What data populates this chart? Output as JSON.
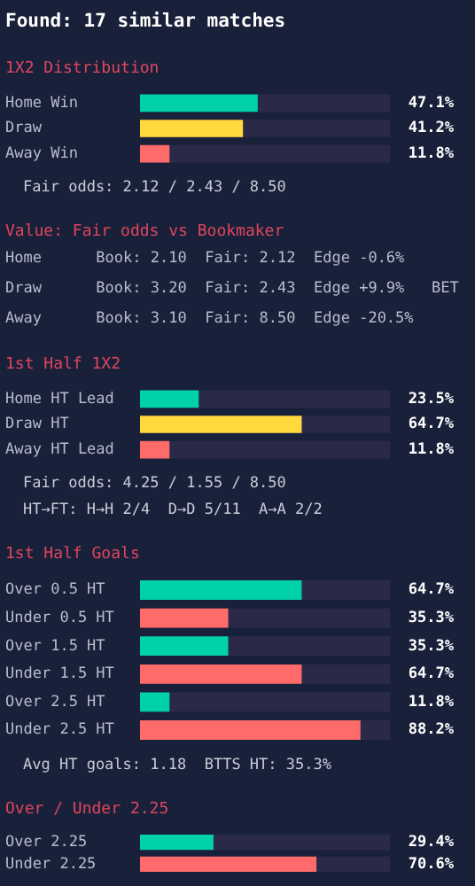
{
  "chart_data": [
    {
      "type": "bar",
      "orientation": "horizontal",
      "title": "Found: 17 similar matches",
      "subtitle": "1X2 Distribution",
      "categories": [
        "Home Win",
        "Draw",
        "Away Win"
      ],
      "values": [
        47.1,
        41.2,
        11.8
      ],
      "colors": [
        "#00d1a8",
        "#ffd93d",
        "#ff6b6b"
      ],
      "value_labels": [
        "47.1%",
        "41.2%",
        "11.8%"
      ],
      "xlim": [
        0,
        100
      ],
      "tick_labels": "y",
      "annotations": [
        "Fair odds: 2.12 / 2.43 / 8.50"
      ]
    },
    {
      "type": "other",
      "title": "Value: Fair odds vs Bookmaker",
      "annotations": [
        "Home      Book: 2.10  Fair: 2.12  Edge -0.6%",
        "Draw      Book: 3.20  Fair: 2.43  Edge +9.9%   BET",
        "Away      Book: 3.10  Fair: 8.50  Edge -20.5%"
      ]
    },
    {
      "type": "bar",
      "orientation": "horizontal",
      "title": "1st Half 1X2",
      "categories": [
        "Home HT Lead",
        "Draw HT",
        "Away HT Lead"
      ],
      "values": [
        23.5,
        64.7,
        11.8
      ],
      "colors": [
        "#00d1a8",
        "#ffd93d",
        "#ff6b6b"
      ],
      "value_labels": [
        "23.5%",
        "64.7%",
        "11.8%"
      ],
      "xlim": [
        0,
        100
      ],
      "tick_labels": "y",
      "annotations": [
        "Fair odds: 4.25 / 1.55 / 8.50",
        "HT→FT: H→H 2/4  D→D 5/11  A→A 2/2"
      ]
    },
    {
      "type": "bar",
      "orientation": "horizontal",
      "title": "1st Half Goals",
      "categories": [
        "Over 0.5 HT",
        "Under 0.5 HT",
        "Over 1.5 HT",
        "Under 1.5 HT",
        "Over 2.5 HT",
        "Under 2.5 HT"
      ],
      "values": [
        64.7,
        35.3,
        35.3,
        64.7,
        11.8,
        88.2
      ],
      "colors": [
        "#00d1a8",
        "#ff6b6b",
        "#00d1a8",
        "#ff6b6b",
        "#00d1a8",
        "#ff6b6b"
      ],
      "value_labels": [
        "64.7%",
        "35.3%",
        "35.3%",
        "64.7%",
        "11.8%",
        "88.2%"
      ],
      "xlim": [
        0,
        100
      ],
      "tick_labels": "y",
      "annotations": [
        "Avg HT goals: 1.18  BTTS HT: 35.3%"
      ]
    },
    {
      "type": "bar",
      "orientation": "horizontal",
      "title": "Over / Under 2.25",
      "categories": [
        "Over 2.25",
        "Under 2.25"
      ],
      "values": [
        29.4,
        70.6
      ],
      "colors": [
        "#00d1a8",
        "#ff6b6b"
      ],
      "value_labels": [
        "29.4%",
        "70.6%"
      ],
      "xlim": [
        0,
        100
      ],
      "tick_labels": "y"
    }
  ]
}
